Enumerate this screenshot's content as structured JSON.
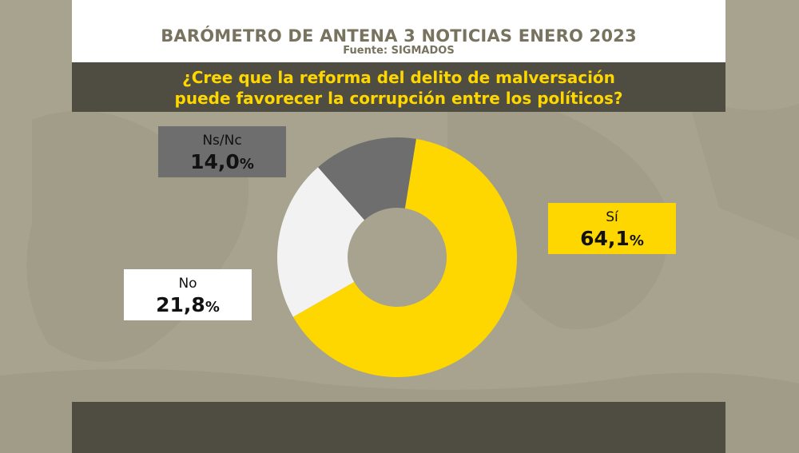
{
  "header": {
    "title": "BARÓMETRO DE ANTENA 3 NOTICIAS ENERO 2023",
    "source": "Fuente: SIGMADOS"
  },
  "question": {
    "line1": "¿Cree que la reforma del delito de malversación",
    "line2": "puede favorecer la corrupción entre los políticos?"
  },
  "colors": {
    "si": "#ffd700",
    "no": "#f2f2f2",
    "nsnc": "#6e6e6e",
    "background": "#a7a38e",
    "bar": "#4f4d41",
    "title_text": "#77735e"
  },
  "chart_data": {
    "type": "pie",
    "variant": "donut",
    "title": "¿Cree que la reforma del delito de malversación puede favorecer la corrupción entre los políticos?",
    "categories": [
      "Sí",
      "No",
      "Ns/Nc"
    ],
    "values": [
      64.1,
      21.8,
      14.0
    ],
    "unit": "%",
    "value_labels": [
      "64,1",
      "21,8",
      "14,0"
    ],
    "pct_symbol": "%"
  }
}
